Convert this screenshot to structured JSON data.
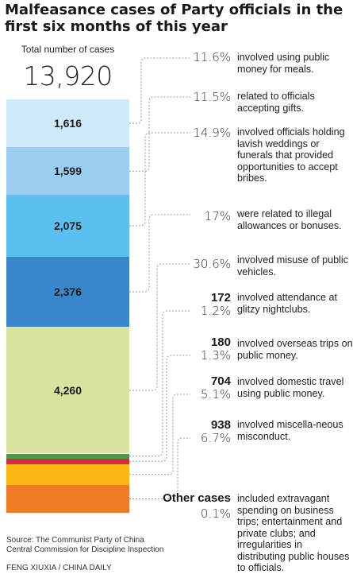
{
  "title": "Malfeasance cases of Party officials in the first six months of this year",
  "total_label": "Total number of cases",
  "total_value": "13,920",
  "source": "Source: The Communist Party of China Central Commission for Discipline Inspection",
  "credit": "FENG XIUXIA / CHINA DAILY",
  "colors": {
    "meals": "#cde9fa",
    "gifts": "#9acdf0",
    "weddings": "#5bbff0",
    "allowances": "#3a86cb",
    "vehicles": "#d6e49d",
    "nightclubs": "#4c9a3f",
    "overseas": "#d42a48",
    "domestic": "#fdb813",
    "misconduct": "#f17a24",
    "other": "#f17a24",
    "leader": "#9a9a9a"
  },
  "chart_data": {
    "type": "bar",
    "stacked": true,
    "title": "Malfeasance cases of Party officials in the first six months of this year",
    "total": 13920,
    "categories": [
      "involved using public money for meals.",
      "related to officials accepting gifts.",
      "involved officials holding lavish weddings or funerals that provided opportunities to accept bribes.",
      "were related to illegal allowances or bonuses.",
      "involved misuse of public vehicles.",
      "involved attendance at glitzy nightclubs.",
      "involved overseas trips on public money.",
      "involved domestic travel using public money.",
      "involved miscella-neous misconduct.",
      "included extravagant spending on business trips; entertainment and private clubs; and irregularities in distributing public houses to officials."
    ],
    "values": [
      1616,
      1599,
      2075,
      2376,
      4260,
      172,
      180,
      704,
      938,
      null
    ],
    "value_labels": [
      "1,616",
      "1,599",
      "2,075",
      "2,376",
      "4,260",
      "172",
      "180",
      "704",
      "938",
      "Other cases"
    ],
    "percents": [
      "11.6%",
      "11.5%",
      "14.9%",
      "17%",
      "30.6%",
      "1.2%",
      "1.3%",
      "5.1%",
      "6.7%",
      "0.1%"
    ],
    "percent_values": [
      11.6,
      11.5,
      14.9,
      17,
      30.6,
      1.2,
      1.3,
      5.1,
      6.7,
      0.1
    ]
  }
}
